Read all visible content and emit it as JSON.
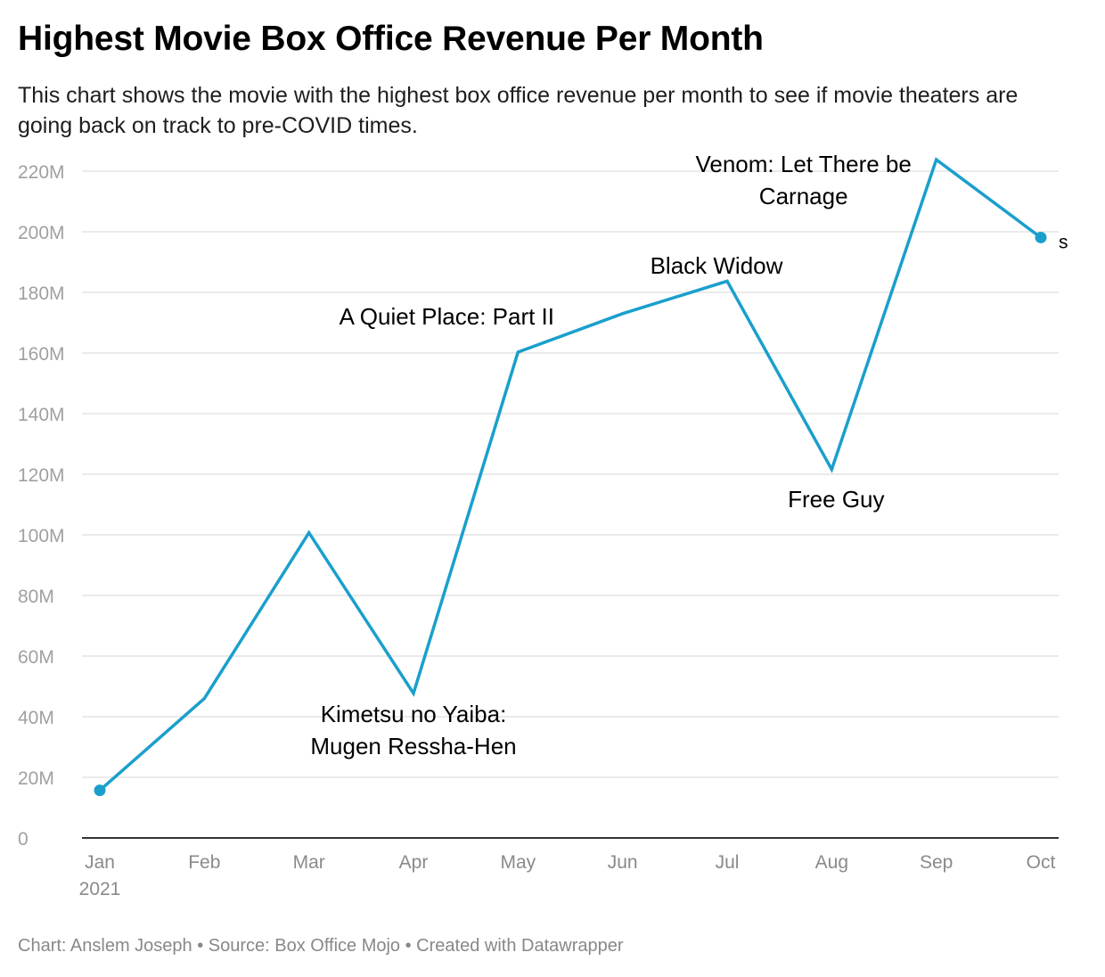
{
  "header": {
    "title": "Highest Movie Box Office Revenue Per Month",
    "subtitle": "This chart shows the movie with the highest box office revenue per month to see if movie theaters are going back on track to pre-COVID times."
  },
  "footer": {
    "credit": "Chart: Anslem Joseph • Source: Box Office Mojo • Created with Datawrapper"
  },
  "colors": {
    "line": "#1a9fcc",
    "grid": "#e3e3e3",
    "baseline": "#333333"
  },
  "chart_data": {
    "type": "line",
    "title": "Highest Movie Box Office Revenue Per Month",
    "xlabel": "",
    "ylabel": "",
    "ylim": [
      0,
      220000000
    ],
    "yticks": [
      0,
      20000000,
      40000000,
      60000000,
      80000000,
      100000000,
      120000000,
      140000000,
      160000000,
      180000000,
      200000000,
      220000000
    ],
    "ytick_labels": [
      "0",
      "20M",
      "40M",
      "60M",
      "80M",
      "100M",
      "120M",
      "140M",
      "160M",
      "180M",
      "200M",
      "220M"
    ],
    "categories": [
      "Jan",
      "Feb",
      "Mar",
      "Apr",
      "May",
      "Jun",
      "Jul",
      "Aug",
      "Sep",
      "Oct"
    ],
    "year_label": "2021",
    "values": [
      15700000,
      46000000,
      100700000,
      47700000,
      160300000,
      173000000,
      183700000,
      121600000,
      223800000,
      198100000
    ],
    "grid": true,
    "end_label": "s",
    "annotations": [
      {
        "month": "Apr",
        "lines": [
          "Kimetsu no Yaiba:",
          "Mugen Ressha-Hen"
        ]
      },
      {
        "month": "May",
        "lines": [
          "A Quiet Place: Part II"
        ]
      },
      {
        "month": "Jul",
        "lines": [
          "Black Widow"
        ]
      },
      {
        "month": "Aug",
        "lines": [
          "Free Guy"
        ]
      },
      {
        "month": "Sep",
        "lines": [
          "Venom: Let There be",
          "Carnage"
        ]
      }
    ]
  }
}
